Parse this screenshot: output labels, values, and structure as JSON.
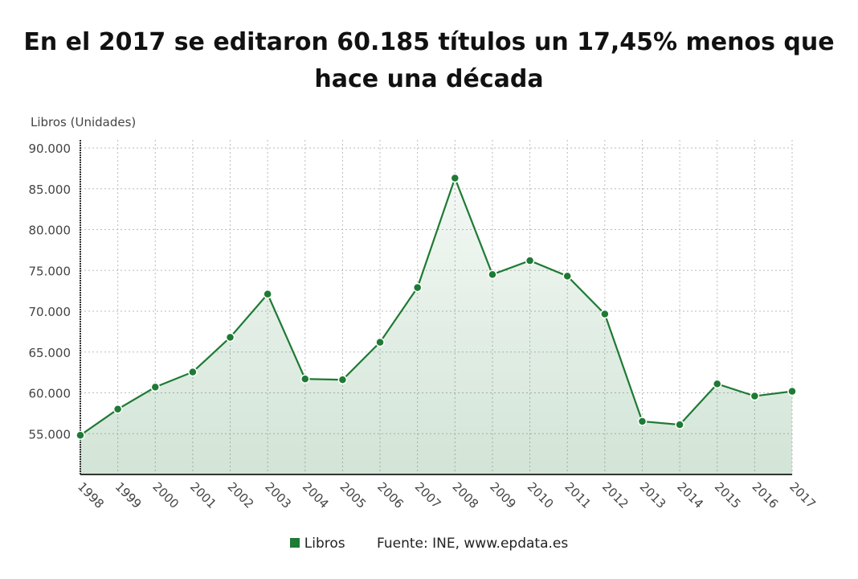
{
  "title": "En el 2017 se editaron 60.185 títulos un 17,45% menos que hace una década",
  "chart_data": {
    "type": "area",
    "title": "En el 2017 se editaron 60.185 títulos un 17,45% menos que hace una década",
    "ylabel": "Libros (Unidades)",
    "xlabel": "",
    "ylim": [
      50000,
      90000
    ],
    "yticks": [
      "55.000",
      "60.000",
      "65.000",
      "70.000",
      "75.000",
      "80.000",
      "85.000",
      "90.000"
    ],
    "ytick_values": [
      55000,
      60000,
      65000,
      70000,
      75000,
      80000,
      85000,
      90000
    ],
    "grid": true,
    "categories": [
      "1998",
      "1999",
      "2000",
      "2001",
      "2002",
      "2003",
      "2004",
      "2005",
      "2006",
      "2007",
      "2008",
      "2009",
      "2010",
      "2011",
      "2012",
      "2013",
      "2014",
      "2015",
      "2016",
      "2017"
    ],
    "series": [
      {
        "name": "Libros",
        "color": "#1e7a34",
        "values": [
          54800,
          58000,
          60700,
          62550,
          66800,
          72100,
          61700,
          61600,
          66200,
          72900,
          86300,
          74500,
          76200,
          74300,
          69650,
          56500,
          56100,
          61100,
          59600,
          60185
        ]
      }
    ],
    "legend_position": "bottom"
  },
  "legend": {
    "series_label": "Libros",
    "source": "Fuente: INE, www.epdata.es"
  }
}
